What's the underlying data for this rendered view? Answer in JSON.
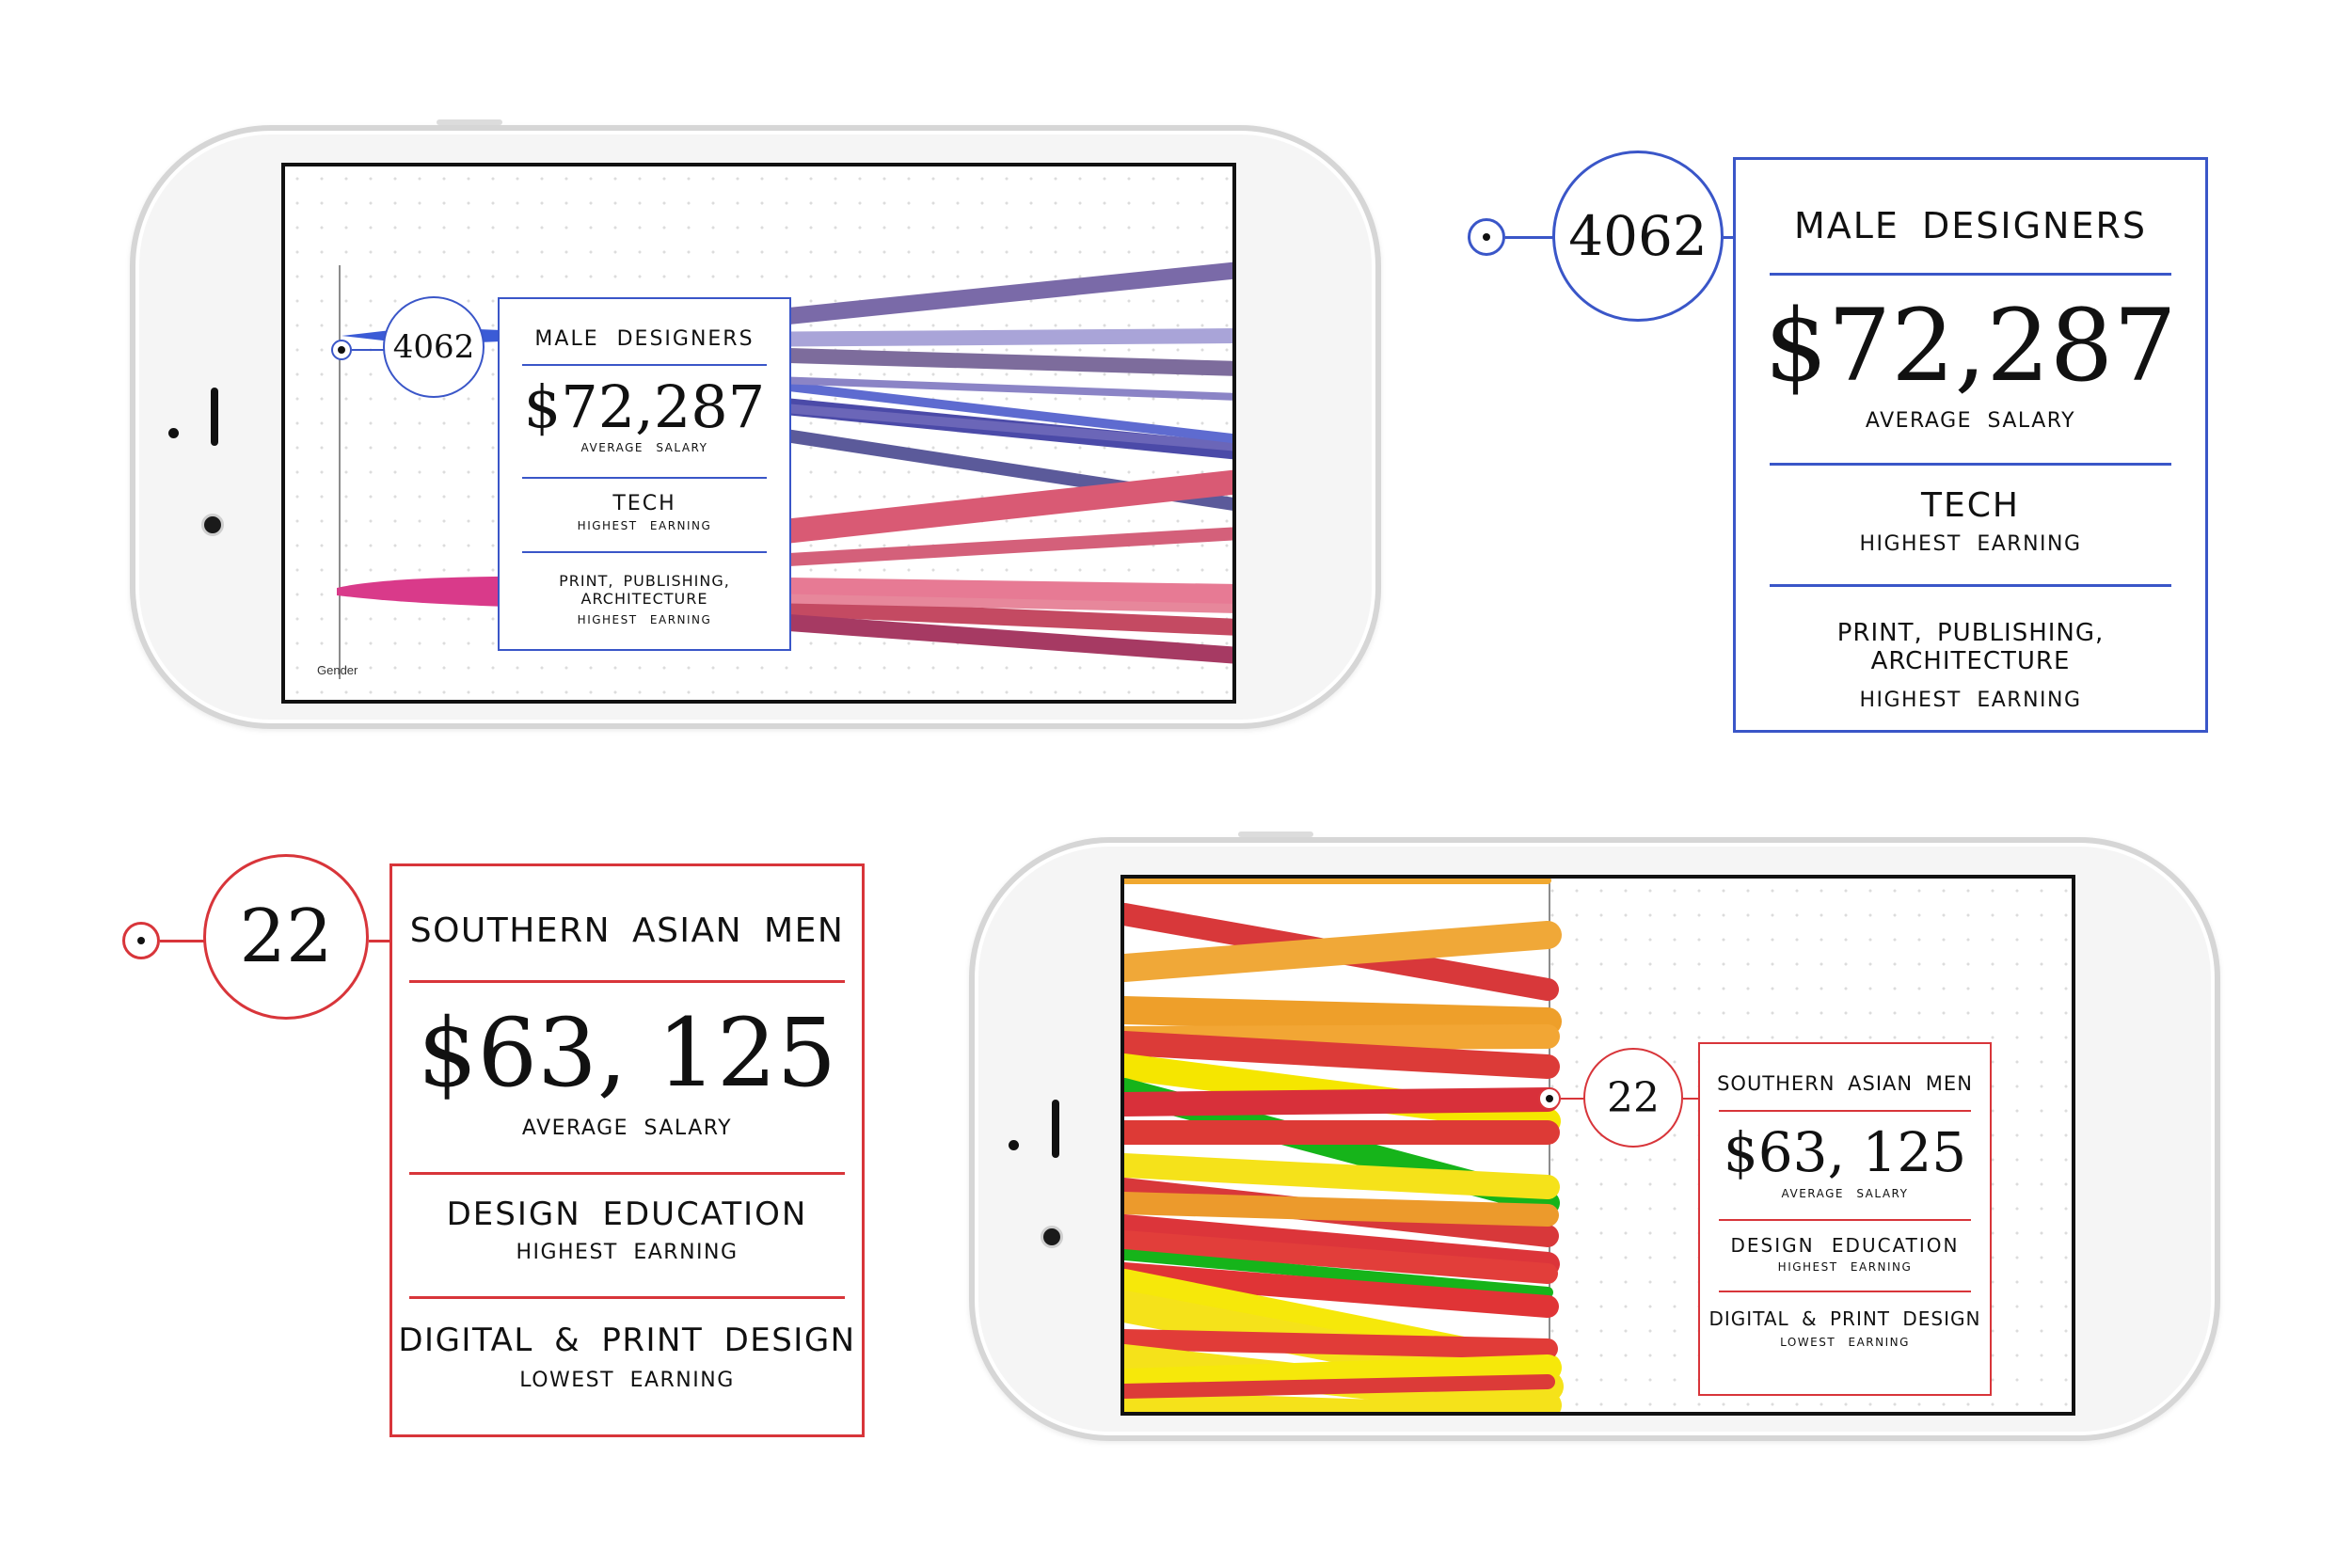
{
  "colors": {
    "blue": "#3a56c8",
    "red": "#d8353a"
  },
  "male": {
    "count": "4062",
    "title": "MALE  DESIGNERS",
    "salary": "$72,287",
    "salary_label": "AVERAGE  SALARY",
    "high_field": "TECH",
    "high_label": "HIGHEST  EARNING",
    "second_field": "PRINT,  PUBLISHING,  ARCHITECTURE",
    "second_label": "HIGHEST  EARNING"
  },
  "asian": {
    "count": "22",
    "title": "SOUTHERN  ASIAN  MEN",
    "salary": "$63, 125",
    "salary_label": "AVERAGE  SALARY",
    "high_field": "DESIGN  EDUCATION",
    "high_label": "HIGHEST  EARNING",
    "low_field": "DIGITAL  &  PRINT  DESIGN",
    "low_label": "LOWEST  EARNING"
  },
  "axis_label": "Gender",
  "icons": [
    "pin-marker-icon"
  ]
}
